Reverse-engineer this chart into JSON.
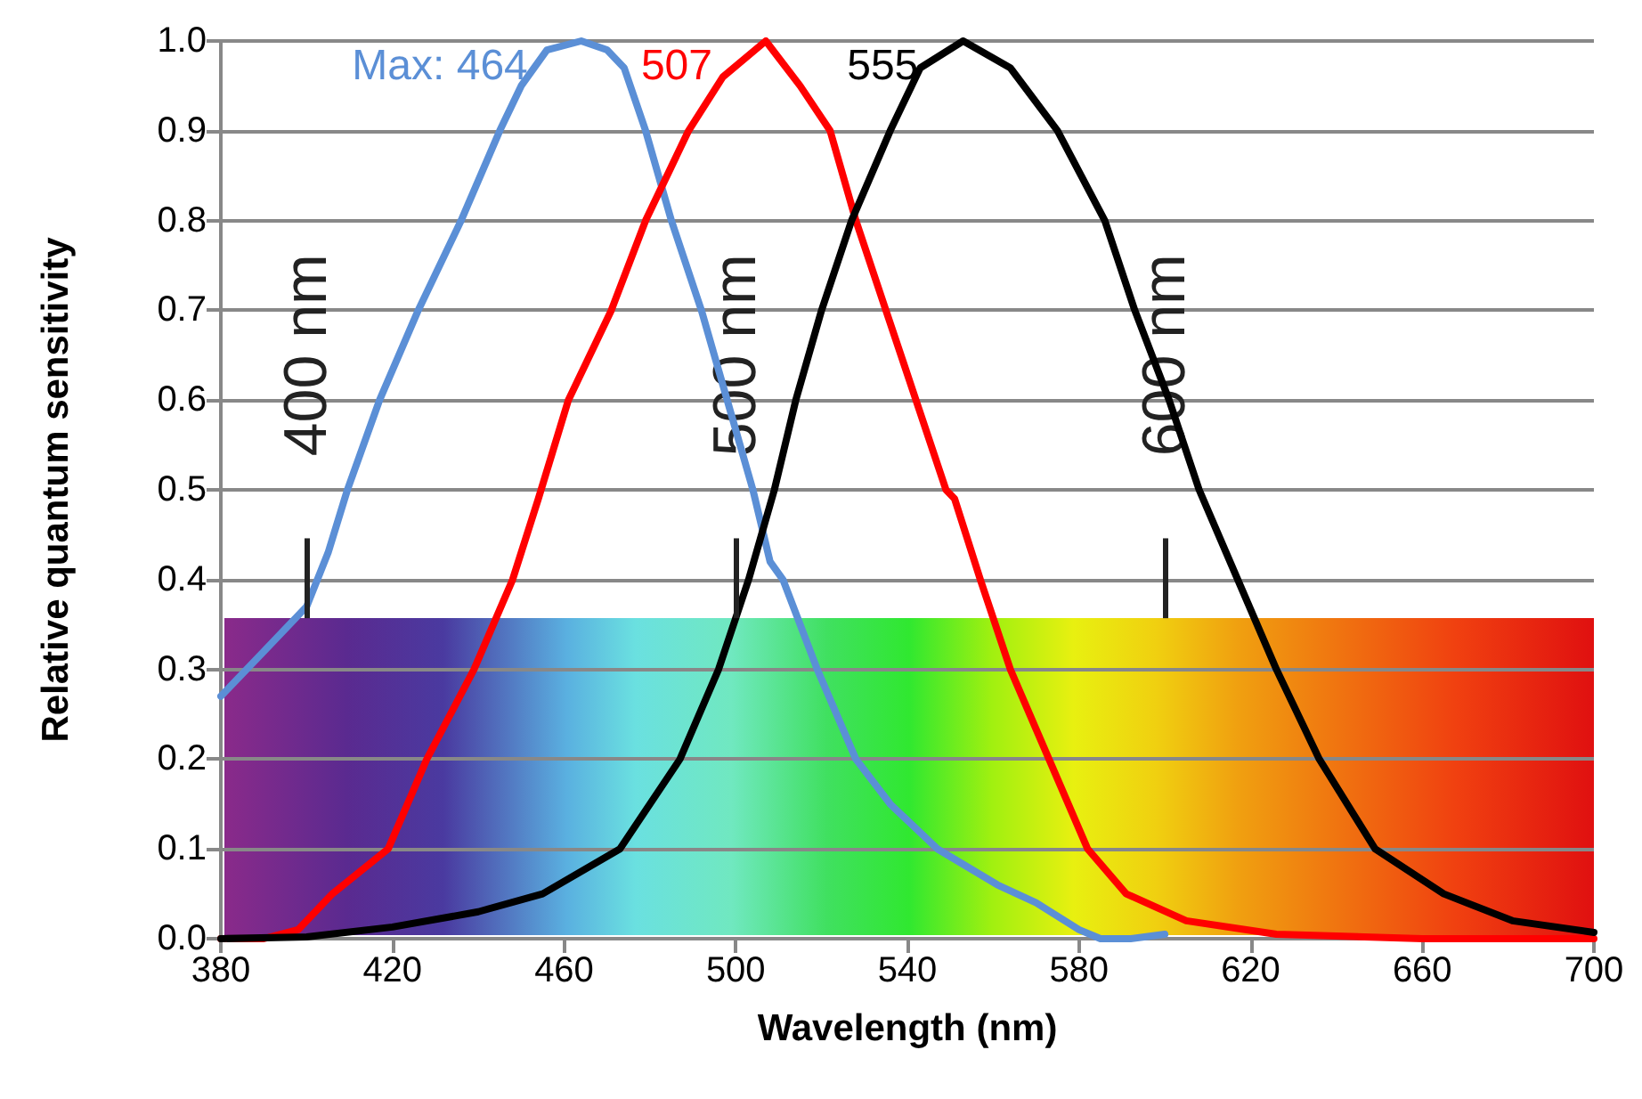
{
  "chart_data": {
    "type": "line",
    "xlabel": "Wavelength (nm)",
    "ylabel": "Relative quantum sensitivity",
    "xlim": [
      380,
      700
    ],
    "xticks": [
      380,
      420,
      460,
      500,
      540,
      580,
      620,
      660,
      700
    ],
    "ylim": [
      0,
      1
    ],
    "yticks": [
      {
        "value": 0,
        "label": "0.0"
      },
      0.1,
      0.2,
      0.3,
      0.4,
      0.5,
      0.6,
      0.7,
      0.8,
      0.9,
      {
        "value": 1,
        "label": "1.0"
      }
    ],
    "grid": "y",
    "marker": "none",
    "line_style": "solid",
    "ref_lines": [
      {
        "axis": "x",
        "value": 400,
        "label": "400 nm",
        "color": "#222222"
      },
      {
        "axis": "x",
        "value": 500,
        "label": "500 nm",
        "color": "#222222"
      },
      {
        "axis": "x",
        "value": 600,
        "label": "600 nm",
        "color": "#222222"
      }
    ],
    "annotations": [
      {
        "text": "Max: 464",
        "x": 464,
        "y": 1
      },
      {
        "text": "507",
        "x": 507,
        "y": 1
      },
      {
        "text": "555",
        "x": 555,
        "y": 1
      }
    ],
    "series": [
      {
        "color": "#5b8fd6",
        "x": [
          380,
          390,
          400,
          405,
          409.5,
          417,
          426,
          436,
          445,
          450,
          456,
          464,
          470,
          474,
          479,
          485,
          492,
          498,
          504,
          508,
          511,
          519,
          528,
          536,
          547,
          561,
          570,
          580,
          585,
          592,
          600
        ],
        "values": [
          0.27,
          0.32,
          0.37,
          0.43,
          0.5,
          0.6,
          0.7,
          0.8,
          0.9,
          0.95,
          0.99,
          1.0,
          0.99,
          0.97,
          0.9,
          0.8,
          0.7,
          0.6,
          0.5,
          0.42,
          0.4,
          0.3,
          0.2,
          0.15,
          0.1,
          0.06,
          0.04,
          0.01,
          0.0,
          0.0,
          0.005
        ]
      },
      {
        "color": "#ff0000",
        "x": [
          380,
          390,
          398,
          406,
          419,
          428,
          439,
          448,
          454,
          461,
          471,
          479,
          489,
          497,
          507,
          515,
          522,
          528,
          535,
          542,
          549,
          551,
          557,
          564,
          573,
          582,
          591,
          605,
          626,
          660,
          700
        ],
        "values": [
          0.0,
          0.0,
          0.01,
          0.05,
          0.1,
          0.2,
          0.3,
          0.4,
          0.49,
          0.6,
          0.7,
          0.8,
          0.9,
          0.96,
          1.0,
          0.95,
          0.9,
          0.8,
          0.7,
          0.6,
          0.5,
          0.49,
          0.4,
          0.3,
          0.2,
          0.1,
          0.05,
          0.02,
          0.005,
          0.0,
          0.0
        ]
      },
      {
        "color": "#000000",
        "x": [
          380,
          400,
          420,
          440,
          455,
          473,
          487,
          496,
          503,
          509,
          514,
          520,
          527,
          536,
          543,
          553,
          564,
          575,
          586,
          593,
          601,
          608,
          617,
          626,
          636,
          649,
          665,
          681,
          700
        ],
        "values": [
          0.0,
          0.002,
          0.013,
          0.03,
          0.05,
          0.1,
          0.2,
          0.3,
          0.4,
          0.5,
          0.6,
          0.7,
          0.8,
          0.9,
          0.97,
          1.0,
          0.97,
          0.9,
          0.8,
          0.7,
          0.6,
          0.5,
          0.4,
          0.3,
          0.2,
          0.1,
          0.05,
          0.02,
          0.007
        ]
      }
    ]
  }
}
